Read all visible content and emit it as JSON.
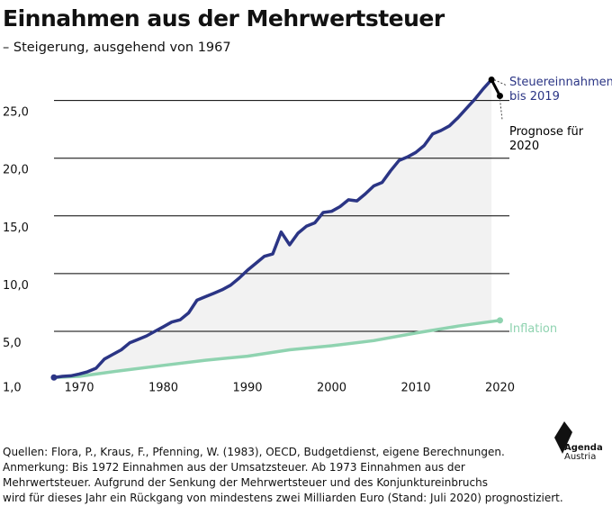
{
  "header": {
    "title": "Einnahmen aus der Mehrwertsteuer",
    "subtitle": "– Steigerung, ausgehend von 1967"
  },
  "chart_data": {
    "type": "line",
    "x_ticks": [
      1970,
      1980,
      1990,
      2000,
      2010,
      2020
    ],
    "y_ticks": [
      1.0,
      5.0,
      10.0,
      15.0,
      20.0,
      25.0
    ],
    "y_tick_labels": [
      "1,0",
      "5,0",
      "10,0",
      "15,0",
      "20,0",
      "25,0"
    ],
    "xlim": [
      1967,
      2020
    ],
    "ylim": [
      1.0,
      26.2
    ],
    "grid": true,
    "colors": {
      "tax": "#2b3585",
      "inflation": "#8fd3b0",
      "forecast": "#000000",
      "fill": "#f2f2f2",
      "grid": "#000000"
    },
    "series": [
      {
        "name": "Steuereinnahmen bis 2019",
        "label_lines": [
          "Steuereinnahmen",
          "bis 2019"
        ],
        "x": [
          1967,
          1968,
          1969,
          1970,
          1971,
          1972,
          1973,
          1974,
          1975,
          1976,
          1977,
          1978,
          1979,
          1980,
          1981,
          1982,
          1983,
          1984,
          1985,
          1986,
          1987,
          1988,
          1989,
          1990,
          1991,
          1992,
          1993,
          1994,
          1995,
          1996,
          1997,
          1998,
          1999,
          2000,
          2001,
          2002,
          2003,
          2004,
          2005,
          2006,
          2007,
          2008,
          2009,
          2010,
          2011,
          2012,
          2013,
          2014,
          2015,
          2016,
          2017,
          2018,
          2019
        ],
        "y": [
          1.0,
          1.1,
          1.15,
          1.3,
          1.5,
          1.8,
          2.6,
          3.0,
          3.4,
          4.0,
          4.3,
          4.6,
          5.0,
          5.4,
          5.8,
          6.0,
          6.6,
          7.7,
          8.0,
          8.3,
          8.6,
          9.0,
          9.6,
          10.3,
          10.9,
          11.5,
          11.7,
          13.6,
          12.5,
          13.5,
          14.1,
          14.4,
          15.3,
          15.4,
          15.8,
          16.4,
          16.3,
          16.9,
          17.6,
          17.9,
          18.9,
          19.8,
          20.1,
          20.5,
          21.1,
          22.1,
          22.4,
          22.8,
          23.5,
          24.3,
          25.1,
          26.0,
          26.8
        ]
      },
      {
        "name": "Inflation",
        "x": [
          1967,
          1970,
          1975,
          1980,
          1985,
          1990,
          1995,
          2000,
          2005,
          2010,
          2015,
          2020
        ],
        "y": [
          1.0,
          1.1,
          1.6,
          2.05,
          2.5,
          2.85,
          3.4,
          3.75,
          4.2,
          4.85,
          5.45,
          5.95
        ]
      },
      {
        "name": "Prognose für 2020",
        "label_lines": [
          "Prognose für",
          "2020"
        ],
        "x": [
          2019,
          2020
        ],
        "y": [
          26.8,
          25.4
        ]
      }
    ]
  },
  "footer": {
    "sources": "Quellen: Flora, P., Kraus, F., Pfenning, W. (1983), OECD, Budgetdienst, eigene Berechnungen.",
    "note_lines": [
      "Anmerkung: Bis 1972 Einnahmen aus der Umsatzsteuer. Ab 1973 Einnahmen aus der",
      "Mehrwertsteuer. Aufgrund der Senkung der Mehrwertsteuer und des Konjunktureinbruchs",
      "wird für dieses Jahr ein Rückgang von mindestens zwei Milliarden Euro (Stand: Juli 2020) prognostiziert."
    ]
  },
  "logo": {
    "line1": "Agenda",
    "line2": "Austria"
  }
}
